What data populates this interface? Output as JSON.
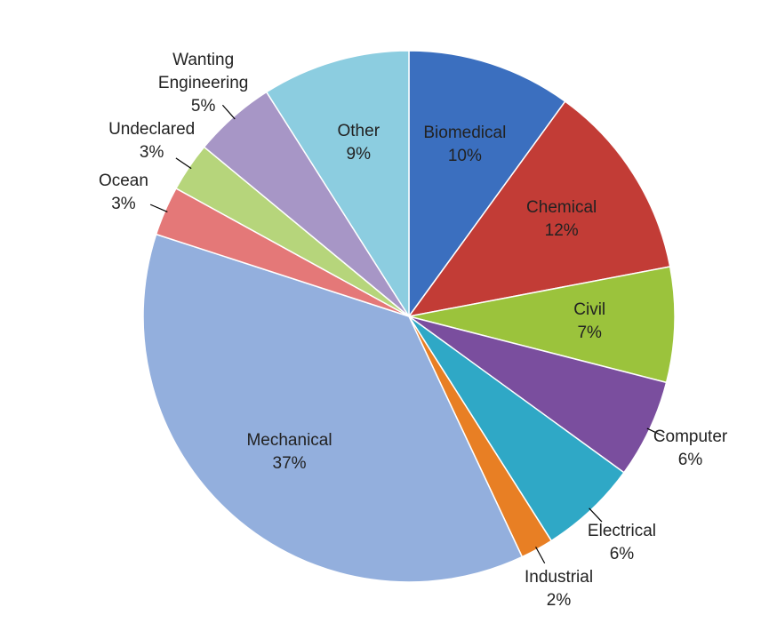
{
  "chart_data": {
    "type": "pie",
    "categories": [
      "Biomedical",
      "Chemical",
      "Civil",
      "Computer",
      "Electrical",
      "Industrial",
      "Mechanical",
      "Ocean",
      "Undeclared",
      "Wanting Engineering",
      "Other"
    ],
    "values": [
      10,
      12,
      7,
      6,
      6,
      2,
      37,
      3,
      3,
      5,
      9
    ],
    "value_labels": [
      "10%",
      "12%",
      "7%",
      "6%",
      "6%",
      "2%",
      "37%",
      "3%",
      "3%",
      "5%",
      "9%"
    ],
    "colors": [
      "#3b6fbf",
      "#c23c36",
      "#9bc33c",
      "#7a4e9e",
      "#2fa8c6",
      "#e87f24",
      "#93afdd",
      "#e47878",
      "#b6d57b",
      "#a796c6",
      "#8ccde0"
    ]
  }
}
